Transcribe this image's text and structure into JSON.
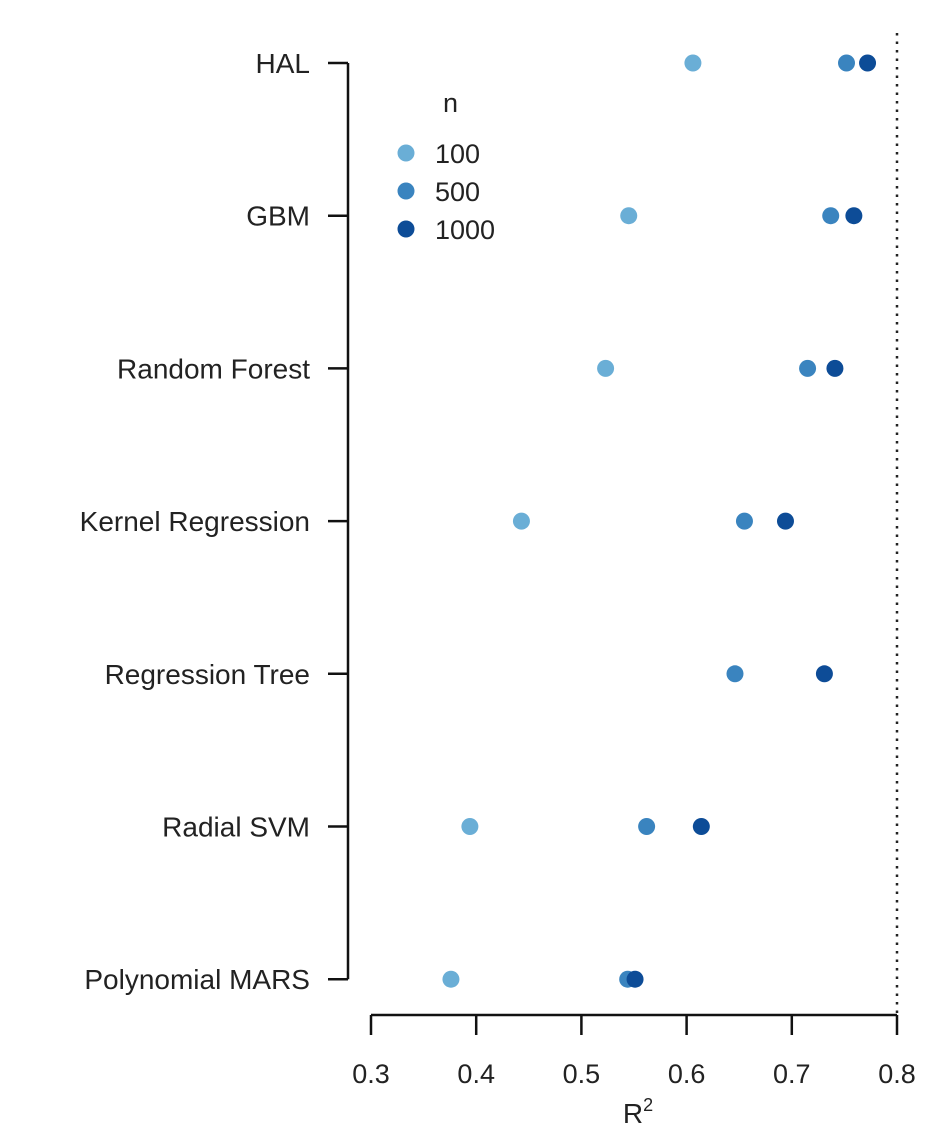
{
  "chart_data": {
    "type": "scatter",
    "categories": [
      "HAL",
      "GBM",
      "Random Forest",
      "Kernel Regression",
      "Regression Tree",
      "Radial SVM",
      "Polynomial MARS"
    ],
    "series": [
      {
        "name": "100",
        "color": "#6AAED6",
        "values": [
          0.606,
          0.545,
          0.523,
          0.443,
          null,
          0.394,
          0.376
        ]
      },
      {
        "name": "500",
        "color": "#3A84BF",
        "values": [
          0.752,
          0.737,
          0.715,
          0.655,
          0.646,
          0.562,
          0.544
        ]
      },
      {
        "name": "1000",
        "color": "#0D4C97",
        "values": [
          0.772,
          0.759,
          0.741,
          0.694,
          0.731,
          0.614,
          0.551
        ]
      }
    ],
    "xlabel": "R",
    "xlabel_superscript": "2",
    "xlim": [
      0.3,
      0.8
    ],
    "xticks": [
      0.3,
      0.4,
      0.5,
      0.6,
      0.7,
      0.8
    ],
    "xtick_labels": [
      "0.3",
      "0.4",
      "0.5",
      "0.6",
      "0.7",
      "0.8"
    ],
    "reference_line": 0.8,
    "legend": {
      "title": "n",
      "position": "top-left"
    },
    "grid": false
  }
}
